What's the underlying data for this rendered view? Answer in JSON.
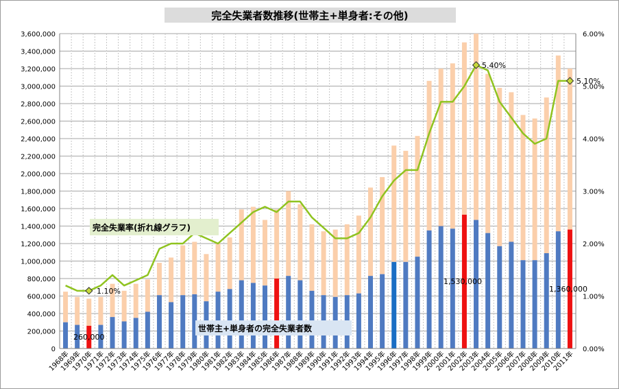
{
  "chart_data": {
    "type": "bar",
    "title": "完全失業者数推移(世帯主+単身者:その他)",
    "categories": [
      "1968年",
      "1969年",
      "1970年",
      "1971年",
      "1972年",
      "1973年",
      "1974年",
      "1975年",
      "1976年",
      "1977年",
      "1978年",
      "1979年",
      "1980年",
      "1981年",
      "1982年",
      "1983年",
      "1984年",
      "1985年",
      "1986年",
      "1987年",
      "1988年",
      "1989年",
      "1990年",
      "1991年",
      "1992年",
      "1993年",
      "1994年",
      "1995年",
      "1996年",
      "1997年",
      "1998年",
      "1999年",
      "2000年",
      "2001年",
      "2002年",
      "2003年",
      "2004年",
      "2005年",
      "2006年",
      "2007年",
      "2008年",
      "2009年",
      "2010年",
      "2011年"
    ],
    "left_axis": {
      "min": 0,
      "max": 3600000,
      "step": 200000,
      "tick_labels": [
        "0",
        "200,000",
        "400,000",
        "600,000",
        "800,000",
        "1,000,000",
        "1,200,000",
        "1,400,000",
        "1,600,000",
        "1,800,000",
        "2,000,000",
        "2,200,000",
        "2,400,000",
        "2,600,000",
        "2,800,000",
        "3,000,000",
        "3,200,000",
        "3,400,000",
        "3,600,000"
      ]
    },
    "right_axis": {
      "min": 0,
      "max": 6,
      "step": 1,
      "tick_labels": [
        "0.00%",
        "1.00%",
        "2.00%",
        "3.00%",
        "4.00%",
        "5.00%",
        "6.00%"
      ]
    },
    "grid": true,
    "series": [
      {
        "kind": "bar-stack-bottom",
        "values": [
          300000,
          270000,
          260000,
          270000,
          360000,
          310000,
          350000,
          420000,
          610000,
          530000,
          610000,
          620000,
          540000,
          650000,
          680000,
          780000,
          750000,
          720000,
          800000,
          830000,
          780000,
          660000,
          610000,
          590000,
          610000,
          630000,
          830000,
          850000,
          990000,
          990000,
          1050000,
          1350000,
          1400000,
          1370000,
          1530000,
          1470000,
          1320000,
          1170000,
          1220000,
          1010000,
          1010000,
          1090000,
          1340000,
          1360000
        ],
        "colors": {
          "default": "#4f7ac1",
          "highlight_red": "#ee1111",
          "highlight_blue": "#1a6ec4"
        },
        "red_categories": [
          "1970年",
          "1986年",
          "2002年",
          "2011年"
        ],
        "blue_categories": [
          "1996年"
        ]
      },
      {
        "kind": "bar-stack-total",
        "color": "#fbcfab",
        "values": [
          650000,
          590000,
          570000,
          590000,
          740000,
          660000,
          740000,
          790000,
          980000,
          1040000,
          1180000,
          1220000,
          1080000,
          1200000,
          1270000,
          1590000,
          1620000,
          1470000,
          1590000,
          1800000,
          1650000,
          1420000,
          1340000,
          1360000,
          1420000,
          1520000,
          1840000,
          1960000,
          2320000,
          2260000,
          2430000,
          3060000,
          3200000,
          3260000,
          3500000,
          3600000,
          3140000,
          2980000,
          2930000,
          2670000,
          2630000,
          2870000,
          3350000,
          3200000
        ]
      },
      {
        "kind": "line",
        "axis": "right",
        "color": "#8fc31f",
        "values": [
          1.2,
          1.1,
          1.1,
          1.2,
          1.4,
          1.2,
          1.3,
          1.4,
          1.9,
          2.0,
          2.0,
          2.2,
          2.1,
          2.0,
          2.2,
          2.4,
          2.6,
          2.7,
          2.6,
          2.8,
          2.8,
          2.5,
          2.3,
          2.1,
          2.1,
          2.2,
          2.5,
          2.9,
          3.2,
          3.4,
          3.4,
          4.1,
          4.7,
          4.7,
          5.0,
          5.4,
          5.3,
          4.7,
          4.4,
          4.1,
          3.9,
          4.0,
          5.1,
          5.1
        ]
      }
    ],
    "marker_categories": [
      "1970年",
      "2003年",
      "2011年"
    ],
    "annotations": {
      "label_1970": "1.10%",
      "label_2003": "5.40%",
      "label_2011": "5.10%",
      "bar_1970": "260,000",
      "bar_2002": "1,530,000",
      "bar_2011": "1,360,000",
      "callout_line": "完全失業率(折れ線グラフ)",
      "callout_bar": "世帯主+単身者の完全失業者数"
    }
  }
}
